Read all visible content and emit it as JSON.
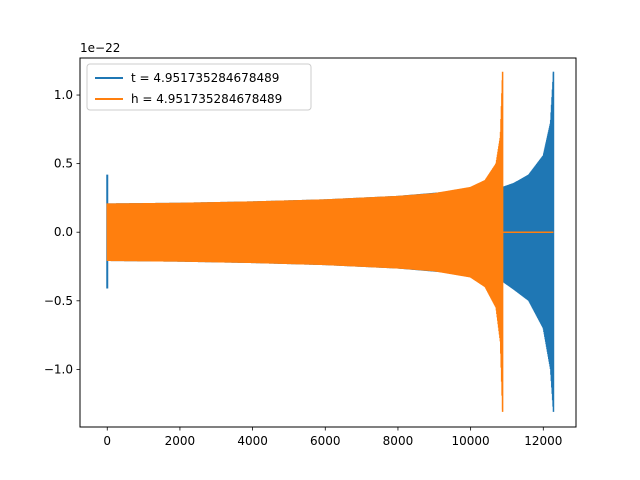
{
  "chart_data": {
    "type": "line",
    "title": "",
    "xlabel": "",
    "ylabel": "",
    "y_offset_label": "1e−22",
    "xlim": [
      -750,
      12900
    ],
    "ylim": [
      -1.42,
      1.27
    ],
    "x_ticks": [
      0,
      2000,
      4000,
      6000,
      8000,
      10000,
      12000
    ],
    "x_tick_labels": [
      "0",
      "2000",
      "4000",
      "6000",
      "8000",
      "10000",
      "12000"
    ],
    "y_ticks": [
      -1.0,
      -0.5,
      0.0,
      0.5,
      1.0
    ],
    "y_tick_labels": [
      "−1.0",
      "−0.5",
      "0.0",
      "0.5",
      "1.0"
    ],
    "grid": false,
    "legend_position": "top-left",
    "series": [
      {
        "name": "t = 4.951735284678489",
        "color": "#1f77b4",
        "description_points": {
          "start_spike_x": 0,
          "start_spike_max": 0.42,
          "start_spike_min": -0.41,
          "envelope_x": [
            0,
            2000,
            4000,
            6000,
            8000,
            10000,
            10880,
            11200,
            11600,
            12000,
            12200,
            12280
          ],
          "envelope_upper": [
            0.21,
            0.215,
            0.225,
            0.24,
            0.265,
            0.31,
            0.33,
            0.36,
            0.42,
            0.56,
            0.8,
            1.17
          ],
          "envelope_lower": [
            -0.21,
            -0.215,
            -0.225,
            -0.24,
            -0.265,
            -0.31,
            -0.36,
            -0.42,
            -0.5,
            -0.7,
            -1.0,
            -1.31
          ],
          "end_x": 12280
        }
      },
      {
        "name": "h = 4.951735284678489",
        "color": "#ff7f0e",
        "description_points": {
          "envelope_x": [
            0,
            2000,
            4000,
            6000,
            8000,
            9000,
            10000,
            10400,
            10700,
            10820,
            10880
          ],
          "envelope_upper": [
            0.21,
            0.215,
            0.225,
            0.24,
            0.265,
            0.285,
            0.33,
            0.38,
            0.5,
            0.7,
            1.17
          ],
          "envelope_lower": [
            -0.21,
            -0.215,
            -0.225,
            -0.24,
            -0.265,
            -0.285,
            -0.33,
            -0.4,
            -0.55,
            -0.8,
            -1.31
          ],
          "flat_after_x": [
            10880,
            12280
          ],
          "flat_value": 0.0
        }
      }
    ]
  }
}
